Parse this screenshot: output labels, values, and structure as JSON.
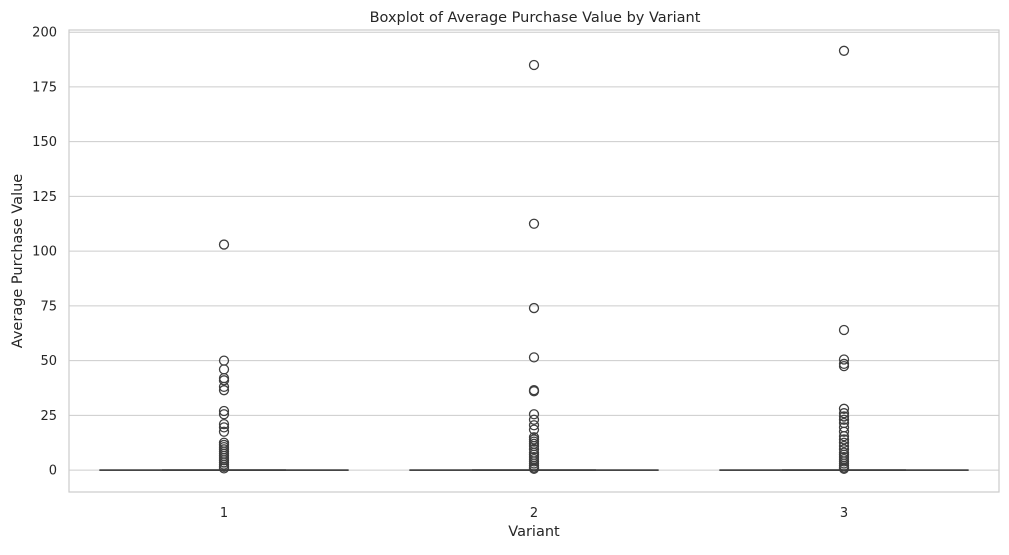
{
  "chart_data": {
    "type": "box",
    "title": "Boxplot of Average Purchase Value by Variant",
    "xlabel": "Variant",
    "ylabel": "Average Purchase Value",
    "categories": [
      "1",
      "2",
      "3"
    ],
    "ylim": [
      -10,
      201
    ],
    "yticks": [
      0,
      25,
      50,
      75,
      100,
      125,
      150,
      175,
      200
    ],
    "grid": true,
    "boxes": [
      {
        "category": "1",
        "q1": 0,
        "median": 0,
        "q3": 0,
        "whisker_low": 0,
        "whisker_high": 0,
        "outliers": [
          103,
          50,
          46,
          42,
          41,
          38,
          36.5,
          27,
          25.5,
          21,
          19.5,
          17.5,
          12.5,
          11.5,
          10.5,
          9.5,
          8.5,
          7.5,
          6.5,
          5.5,
          4.5,
          3.5,
          2.5,
          1.5,
          0.8
        ]
      },
      {
        "category": "2",
        "q1": 0,
        "median": 0,
        "q3": 0,
        "whisker_low": 0,
        "whisker_high": 0,
        "outliers": [
          185,
          112.5,
          74,
          51.5,
          36.5,
          36,
          25.5,
          23,
          20.5,
          18.5,
          15,
          14,
          13,
          12,
          11,
          9.5,
          8,
          7,
          6,
          5,
          4,
          3,
          2,
          1.2,
          0.6
        ]
      },
      {
        "category": "3",
        "q1": 0,
        "median": 0,
        "q3": 0,
        "whisker_low": 0,
        "whisker_high": 0,
        "outliers": [
          191.5,
          64,
          50.5,
          48.5,
          47.5,
          28,
          26,
          24.5,
          23,
          21.5,
          19.5,
          17.5,
          15.5,
          14,
          12.5,
          11,
          9.5,
          8,
          7,
          6,
          5,
          4,
          3,
          2,
          1.2,
          0.6
        ]
      }
    ],
    "colors": {
      "box_edge": "#3f3f3f",
      "grid": "#cccccc",
      "frame": "#cccccc",
      "text": "#262626"
    }
  }
}
